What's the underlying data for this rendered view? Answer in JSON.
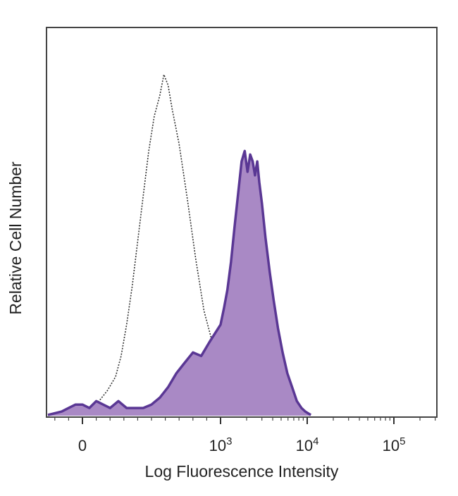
{
  "chart_data": {
    "type": "area",
    "title": "",
    "xlabel": "Log Fluorescence Intensity",
    "ylabel": "Relative Cell Number",
    "x_scale": "biexponential",
    "x_ticks": [
      {
        "value": 0,
        "base": "0",
        "exp": ""
      },
      {
        "value": 1000,
        "base": "10",
        "exp": "3"
      },
      {
        "value": 10000,
        "base": "10",
        "exp": "4"
      },
      {
        "value": 100000,
        "base": "10",
        "exp": "5"
      }
    ],
    "ylim": [
      0,
      100
    ],
    "grid": false,
    "legend": "none",
    "series": [
      {
        "style": "dotted-outline",
        "color": "#333333",
        "points": [
          [
            -150,
            0
          ],
          [
            -60,
            0.5
          ],
          [
            0,
            1
          ],
          [
            60,
            2
          ],
          [
            120,
            4
          ],
          [
            180,
            7
          ],
          [
            240,
            11
          ],
          [
            280,
            17
          ],
          [
            320,
            26
          ],
          [
            360,
            37
          ],
          [
            400,
            50
          ],
          [
            440,
            63
          ],
          [
            480,
            76
          ],
          [
            520,
            86
          ],
          [
            560,
            92
          ],
          [
            590,
            98
          ],
          [
            620,
            95
          ],
          [
            650,
            88
          ],
          [
            700,
            78
          ],
          [
            760,
            62
          ],
          [
            820,
            45
          ],
          [
            880,
            30
          ],
          [
            960,
            18
          ],
          [
            1050,
            9
          ],
          [
            1150,
            4
          ],
          [
            1300,
            1
          ],
          [
            1500,
            0
          ]
        ]
      },
      {
        "style": "filled",
        "color": "#5a3794",
        "fill": "#a989c5",
        "points": [
          [
            -250,
            0
          ],
          [
            -150,
            1
          ],
          [
            -100,
            2
          ],
          [
            -50,
            3
          ],
          [
            0,
            3
          ],
          [
            50,
            2
          ],
          [
            100,
            4
          ],
          [
            150,
            3
          ],
          [
            200,
            2
          ],
          [
            260,
            4
          ],
          [
            320,
            2
          ],
          [
            380,
            2
          ],
          [
            440,
            2
          ],
          [
            500,
            3
          ],
          [
            560,
            5
          ],
          [
            620,
            8
          ],
          [
            680,
            12
          ],
          [
            740,
            15
          ],
          [
            800,
            18
          ],
          [
            860,
            17
          ],
          [
            920,
            21
          ],
          [
            1000,
            26
          ],
          [
            1100,
            31
          ],
          [
            1200,
            36
          ],
          [
            1320,
            44
          ],
          [
            1450,
            54
          ],
          [
            1600,
            64
          ],
          [
            1750,
            73
          ],
          [
            1900,
            76
          ],
          [
            2050,
            70
          ],
          [
            2200,
            75
          ],
          [
            2350,
            73
          ],
          [
            2500,
            69
          ],
          [
            2650,
            73
          ],
          [
            2800,
            67
          ],
          [
            3000,
            61
          ],
          [
            3300,
            51
          ],
          [
            3700,
            41
          ],
          [
            4100,
            33
          ],
          [
            4600,
            25
          ],
          [
            5200,
            18
          ],
          [
            5900,
            12
          ],
          [
            6700,
            8
          ],
          [
            7600,
            4
          ],
          [
            8600,
            2
          ],
          [
            9500,
            1
          ],
          [
            11000,
            0
          ]
        ]
      }
    ]
  }
}
